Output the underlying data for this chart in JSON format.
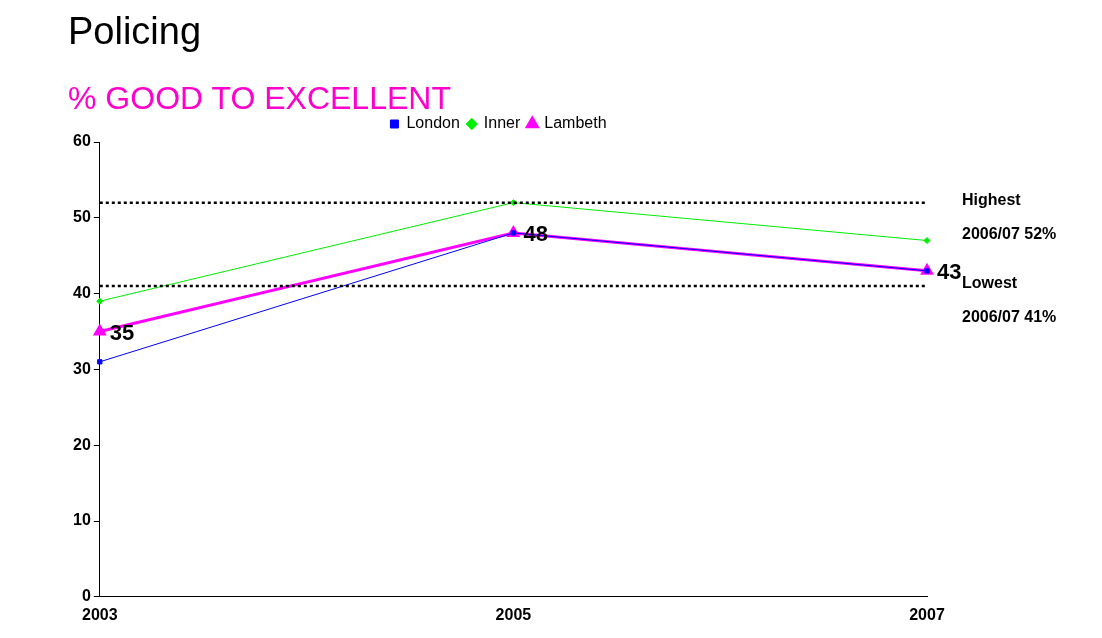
{
  "chart_data": {
    "type": "line",
    "title": "Policing",
    "subtitle": "% GOOD TO EXCELLENT",
    "categories": [
      "2003",
      "2005",
      "2007"
    ],
    "series": [
      {
        "name": "London",
        "color": "#0000ff",
        "values": [
          31,
          48,
          43
        ],
        "marker": "square"
      },
      {
        "name": "Inner",
        "color": "#00ee00",
        "values": [
          39,
          52,
          47
        ],
        "marker": "diamond"
      },
      {
        "name": "Lambeth",
        "color": "#ff00ff",
        "values": [
          35,
          48,
          43
        ],
        "marker": "triangle",
        "value_labels": [
          "35",
          "48",
          "43"
        ]
      }
    ],
    "ylim": [
      0,
      60
    ],
    "yticks": [
      0,
      10,
      20,
      30,
      40,
      50,
      60
    ],
    "grid": false,
    "legend": "top",
    "line_style": "solid",
    "ref_lines": [
      {
        "axis": "y",
        "value": 52,
        "label": "Highest 2006/07 52%",
        "color": "#000000",
        "line_style": "dotted"
      },
      {
        "axis": "y",
        "value": 41,
        "label": "Lowest 2006/07 41%",
        "color": "#000000",
        "line_style": "dotted"
      }
    ]
  }
}
